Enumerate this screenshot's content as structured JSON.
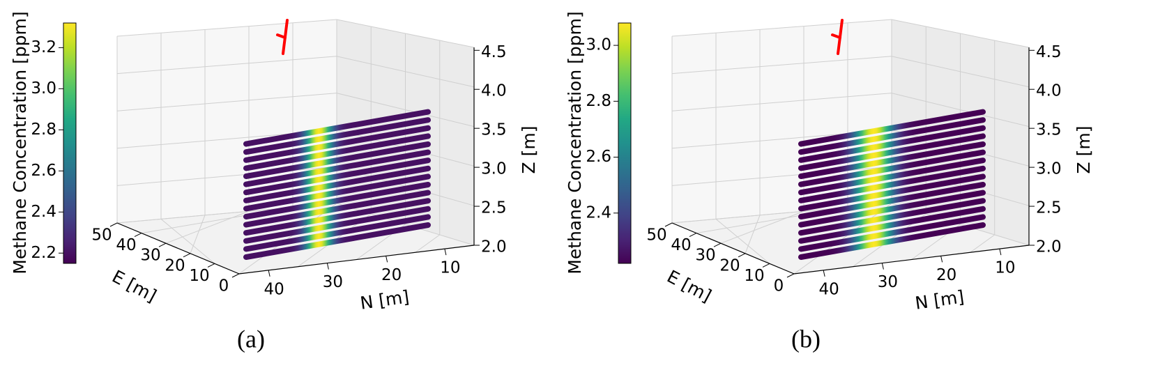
{
  "chart_data": [
    {
      "panel_label": "(a)",
      "type": "scatter3d",
      "colorbar": {
        "label": "Methane Concentration [ppm]",
        "ticks": [
          "2.2",
          "2.4",
          "2.6",
          "2.8",
          "3.0",
          "3.2"
        ],
        "vmin": 2.15,
        "vmax": 3.32,
        "colormap": "viridis"
      },
      "axes": {
        "x": {
          "label": "N [m]",
          "ticks": [
            "10",
            "20",
            "30",
            "40"
          ],
          "range": [
            5,
            50
          ]
        },
        "y": {
          "label": "E [m]",
          "ticks": [
            "0",
            "10",
            "20",
            "30",
            "40",
            "50"
          ],
          "range": [
            0,
            55
          ]
        },
        "z": {
          "label": "Z [m]",
          "ticks": [
            "2.0",
            "2.5",
            "3.0",
            "3.5",
            "4.0",
            "4.5"
          ],
          "range": [
            2.0,
            4.6
          ]
        }
      },
      "grid": true,
      "scan_rows": {
        "count": 15,
        "z_range": [
          2.1,
          3.5
        ],
        "n_range": [
          10,
          45
        ],
        "plume_center_n": 31,
        "plume_width_n": 1.8,
        "peak_ppm": 3.32,
        "background_ppm": 2.2
      },
      "source_marker": {
        "color": "#ff0000"
      }
    },
    {
      "panel_label": "(b)",
      "type": "scatter3d",
      "colorbar": {
        "label": "Methane Concentration [ppm]",
        "ticks": [
          "2.4",
          "2.6",
          "2.8",
          "3.0"
        ],
        "vmin": 2.22,
        "vmax": 3.08,
        "colormap": "viridis"
      },
      "axes": {
        "x": {
          "label": "N [m]",
          "ticks": [
            "10",
            "20",
            "30",
            "40"
          ],
          "range": [
            5,
            50
          ]
        },
        "y": {
          "label": "E [m]",
          "ticks": [
            "0",
            "10",
            "20",
            "30",
            "40",
            "50"
          ],
          "range": [
            0,
            55
          ]
        },
        "z": {
          "label": "Z [m]",
          "ticks": [
            "2.0",
            "2.5",
            "3.0",
            "3.5",
            "4.0",
            "4.5"
          ],
          "range": [
            2.0,
            4.6
          ]
        }
      },
      "grid": true,
      "scan_rows": {
        "count": 15,
        "z_range": [
          2.1,
          3.5
        ],
        "n_range": [
          10,
          45
        ],
        "plume_center_n": 31,
        "plume_width_n": 2.6,
        "peak_ppm": 3.08,
        "background_ppm": 2.22
      },
      "source_marker": {
        "color": "#ff0000"
      }
    }
  ]
}
